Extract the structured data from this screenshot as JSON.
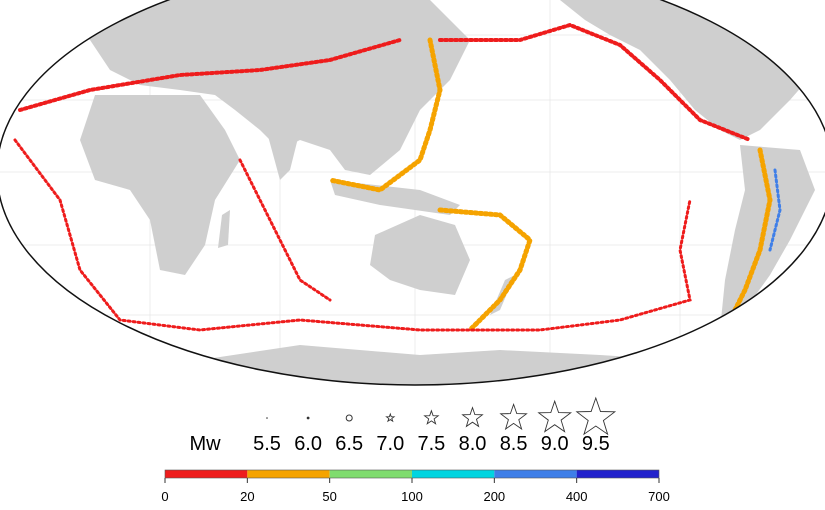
{
  "legend": {
    "magnitude_label": "Mw",
    "magnitudes": [
      "5.5",
      "6.0",
      "6.5",
      "7.0",
      "7.5",
      "8.0",
      "8.5",
      "9.0",
      "9.5"
    ]
  },
  "colorbar": {
    "ticks": [
      0,
      20,
      50,
      100,
      200,
      400,
      700
    ],
    "colors": [
      "#ee1c1c",
      "#f5a300",
      "#7fdc6e",
      "#00d5e0",
      "#3f7fe8",
      "#2222cc"
    ]
  }
}
